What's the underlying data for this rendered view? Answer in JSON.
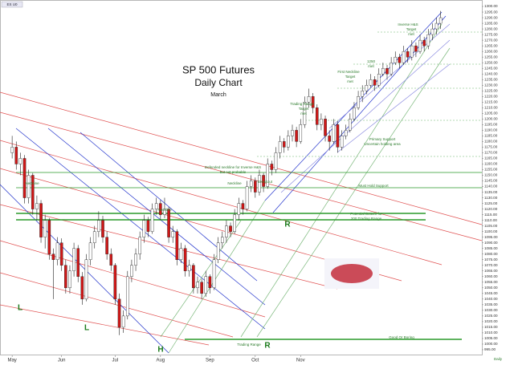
{
  "chart_data": {
    "type": "candlestick",
    "title": "SP 500 Futures",
    "subtitle": "Daily Chart",
    "period": "March",
    "symbol": "ES U0",
    "up_color": "#ffffff",
    "down_color": "#d01818",
    "outline_color": "#222222",
    "xlim": [
      -1,
      114
    ],
    "xticks": [
      {
        "value": 0,
        "label": "May"
      },
      {
        "value": 12,
        "label": "Jun"
      },
      {
        "value": 25,
        "label": "Jul"
      },
      {
        "value": 36,
        "label": "Aug"
      },
      {
        "value": 48,
        "label": "Sep"
      },
      {
        "value": 59,
        "label": "Oct"
      },
      {
        "value": 70,
        "label": "Nov"
      }
    ],
    "ylim": [
      990,
      1305
    ],
    "yticks": [
      {
        "value": 995,
        "label": "995.00"
      },
      {
        "value": 1000,
        "label": "1000.00"
      },
      {
        "value": 1005,
        "label": "1005.00"
      },
      {
        "value": 1010,
        "label": "1010.00"
      },
      {
        "value": 1015,
        "label": "1015.00"
      },
      {
        "value": 1020,
        "label": "1020.00"
      },
      {
        "value": 1025,
        "label": "1025.00"
      },
      {
        "value": 1030,
        "label": "1030.00"
      },
      {
        "value": 1035,
        "label": "1035.00"
      },
      {
        "value": 1040,
        "label": "1040.00"
      },
      {
        "value": 1045,
        "label": "1045.00"
      },
      {
        "value": 1050,
        "label": "1050.00"
      },
      {
        "value": 1055,
        "label": "1055.00"
      },
      {
        "value": 1060,
        "label": "1060.00"
      },
      {
        "value": 1065,
        "label": "1065.00"
      },
      {
        "value": 1070,
        "label": "1070.00"
      },
      {
        "value": 1075,
        "label": "1075.00"
      },
      {
        "value": 1080,
        "label": "1080.00"
      },
      {
        "value": 1085,
        "label": "1085.00"
      },
      {
        "value": 1090,
        "label": "1090.00"
      },
      {
        "value": 1095,
        "label": "1095.00"
      },
      {
        "value": 1100,
        "label": "1100.00"
      },
      {
        "value": 1105,
        "label": "1105.00"
      },
      {
        "value": 1110,
        "label": "1110.00"
      },
      {
        "value": 1115,
        "label": "1115.00"
      },
      {
        "value": 1120,
        "label": "1120.00"
      },
      {
        "value": 1125,
        "label": "1125.00"
      },
      {
        "value": 1130,
        "label": "1130.00"
      },
      {
        "value": 1135,
        "label": "1135.00"
      },
      {
        "value": 1140,
        "label": "1140.00"
      },
      {
        "value": 1145,
        "label": "1145.00"
      },
      {
        "value": 1150,
        "label": "1150.00"
      },
      {
        "value": 1155,
        "label": "1155.00"
      },
      {
        "value": 1160,
        "label": "1160.00"
      },
      {
        "value": 1165,
        "label": "1165.00"
      },
      {
        "value": 1170,
        "label": "1170.00"
      },
      {
        "value": 1175,
        "label": "1175.00"
      },
      {
        "value": 1180,
        "label": "1180.00"
      },
      {
        "value": 1185,
        "label": "1185.00"
      },
      {
        "value": 1190,
        "label": "1190.00"
      },
      {
        "value": 1195,
        "label": "1195.00"
      },
      {
        "value": 1200,
        "label": "1200.00"
      },
      {
        "value": 1205,
        "label": "1205.00"
      },
      {
        "value": 1210,
        "label": "1210.00"
      },
      {
        "value": 1215,
        "label": "1215.00"
      },
      {
        "value": 1220,
        "label": "1220.00"
      },
      {
        "value": 1225,
        "label": "1225.00"
      },
      {
        "value": 1230,
        "label": "1230.00"
      },
      {
        "value": 1235,
        "label": "1235.00"
      },
      {
        "value": 1240,
        "label": "1240.00"
      },
      {
        "value": 1245,
        "label": "1245.00"
      },
      {
        "value": 1250,
        "label": "1250.00"
      },
      {
        "value": 1255,
        "label": "1255.00"
      },
      {
        "value": 1260,
        "label": "1260.00"
      },
      {
        "value": 1265,
        "label": "1265.00"
      },
      {
        "value": 1270,
        "label": "1270.00"
      },
      {
        "value": 1275,
        "label": "1275.00"
      },
      {
        "value": 1280,
        "label": "1280.00"
      },
      {
        "value": 1285,
        "label": "1285.00"
      },
      {
        "value": 1290,
        "label": "1290.00"
      },
      {
        "value": 1295,
        "label": "1295.00"
      },
      {
        "value": 1300,
        "label": "1300.00"
      }
    ],
    "ohlc": [
      [
        1170,
        1185,
        1165,
        1175
      ],
      [
        1175,
        1180,
        1155,
        1160
      ],
      [
        1160,
        1170,
        1150,
        1165
      ],
      [
        1165,
        1168,
        1125,
        1130
      ],
      [
        1130,
        1155,
        1125,
        1150
      ],
      [
        1150,
        1152,
        1115,
        1120
      ],
      [
        1120,
        1132,
        1110,
        1125
      ],
      [
        1125,
        1128,
        1090,
        1095
      ],
      [
        1095,
        1115,
        1085,
        1110
      ],
      [
        1110,
        1112,
        1075,
        1080
      ],
      [
        1080,
        1085,
        1040,
        1075
      ],
      [
        1075,
        1095,
        1070,
        1090
      ],
      [
        1090,
        1094,
        1065,
        1070
      ],
      [
        1070,
        1075,
        1045,
        1050
      ],
      [
        1050,
        1070,
        1045,
        1065
      ],
      [
        1065,
        1090,
        1060,
        1085
      ],
      [
        1085,
        1088,
        1055,
        1060
      ],
      [
        1060,
        1064,
        1035,
        1040
      ],
      [
        1040,
        1080,
        1038,
        1075
      ],
      [
        1075,
        1095,
        1070,
        1090
      ],
      [
        1090,
        1105,
        1085,
        1100
      ],
      [
        1100,
        1118,
        1095,
        1110
      ],
      [
        1110,
        1114,
        1090,
        1095
      ],
      [
        1095,
        1100,
        1075,
        1080
      ],
      [
        1080,
        1085,
        1065,
        1070
      ],
      [
        1070,
        1072,
        1035,
        1040
      ],
      [
        1040,
        1045,
        1008,
        1015
      ],
      [
        1015,
        1030,
        1010,
        1025
      ],
      [
        1025,
        1065,
        1022,
        1060
      ],
      [
        1060,
        1075,
        1055,
        1070
      ],
      [
        1070,
        1085,
        1065,
        1080
      ],
      [
        1080,
        1100,
        1075,
        1095
      ],
      [
        1095,
        1115,
        1090,
        1110
      ],
      [
        1110,
        1113,
        1095,
        1100
      ],
      [
        1100,
        1125,
        1098,
        1120
      ],
      [
        1120,
        1130,
        1115,
        1125
      ],
      [
        1125,
        1128,
        1110,
        1115
      ],
      [
        1115,
        1130,
        1112,
        1120
      ],
      [
        1120,
        1122,
        1090,
        1095
      ],
      [
        1095,
        1105,
        1090,
        1100
      ],
      [
        1100,
        1102,
        1070,
        1075
      ],
      [
        1075,
        1090,
        1072,
        1085
      ],
      [
        1085,
        1088,
        1060,
        1065
      ],
      [
        1065,
        1075,
        1060,
        1070
      ],
      [
        1070,
        1072,
        1045,
        1050
      ],
      [
        1050,
        1060,
        1045,
        1055
      ],
      [
        1055,
        1058,
        1040,
        1045
      ],
      [
        1045,
        1065,
        1042,
        1060
      ],
      [
        1060,
        1062,
        1045,
        1050
      ],
      [
        1050,
        1080,
        1048,
        1075
      ],
      [
        1075,
        1095,
        1072,
        1090
      ],
      [
        1090,
        1100,
        1085,
        1095
      ],
      [
        1095,
        1110,
        1090,
        1105
      ],
      [
        1105,
        1108,
        1095,
        1100
      ],
      [
        1100,
        1120,
        1098,
        1115
      ],
      [
        1115,
        1130,
        1110,
        1125
      ],
      [
        1125,
        1128,
        1115,
        1120
      ],
      [
        1120,
        1145,
        1118,
        1140
      ],
      [
        1140,
        1150,
        1135,
        1145
      ],
      [
        1145,
        1148,
        1130,
        1135
      ],
      [
        1135,
        1155,
        1132,
        1150
      ],
      [
        1150,
        1152,
        1135,
        1140
      ],
      [
        1140,
        1165,
        1138,
        1160
      ],
      [
        1160,
        1163,
        1150,
        1155
      ],
      [
        1155,
        1175,
        1152,
        1170
      ],
      [
        1170,
        1185,
        1165,
        1180
      ],
      [
        1180,
        1183,
        1170,
        1175
      ],
      [
        1175,
        1190,
        1172,
        1185
      ],
      [
        1185,
        1195,
        1180,
        1190
      ],
      [
        1190,
        1193,
        1175,
        1180
      ],
      [
        1180,
        1200,
        1178,
        1195
      ],
      [
        1195,
        1220,
        1192,
        1215
      ],
      [
        1215,
        1227,
        1210,
        1220
      ],
      [
        1220,
        1223,
        1205,
        1210
      ],
      [
        1210,
        1213,
        1190,
        1195
      ],
      [
        1195,
        1205,
        1190,
        1200
      ],
      [
        1200,
        1203,
        1180,
        1185
      ],
      [
        1185,
        1190,
        1172,
        1180
      ],
      [
        1180,
        1200,
        1178,
        1195
      ],
      [
        1195,
        1198,
        1170,
        1175
      ],
      [
        1175,
        1190,
        1172,
        1185
      ],
      [
        1185,
        1195,
        1182,
        1190
      ],
      [
        1190,
        1205,
        1188,
        1200
      ],
      [
        1200,
        1215,
        1198,
        1210
      ],
      [
        1210,
        1225,
        1208,
        1220
      ],
      [
        1220,
        1230,
        1215,
        1225
      ],
      [
        1225,
        1235,
        1222,
        1230
      ],
      [
        1230,
        1240,
        1228,
        1235
      ],
      [
        1235,
        1238,
        1225,
        1230
      ],
      [
        1230,
        1245,
        1228,
        1240
      ],
      [
        1240,
        1250,
        1238,
        1245
      ],
      [
        1245,
        1248,
        1235,
        1240
      ],
      [
        1240,
        1255,
        1238,
        1250
      ],
      [
        1250,
        1260,
        1248,
        1255
      ],
      [
        1255,
        1258,
        1245,
        1250
      ],
      [
        1250,
        1265,
        1248,
        1260
      ],
      [
        1260,
        1263,
        1250,
        1255
      ],
      [
        1255,
        1270,
        1252,
        1265
      ],
      [
        1265,
        1268,
        1255,
        1260
      ],
      [
        1260,
        1275,
        1258,
        1270
      ],
      [
        1270,
        1273,
        1260,
        1265
      ],
      [
        1265,
        1280,
        1262,
        1275
      ],
      [
        1275,
        1285,
        1270,
        1280
      ],
      [
        1280,
        1290,
        1275,
        1285
      ],
      [
        1285,
        1296,
        1280,
        1290
      ]
    ],
    "annotations": [
      "Inverse H&S",
      "Target",
      "met",
      "1250",
      "met",
      "First Neckline",
      "Target",
      "met",
      "Trading Range",
      "Target",
      "met",
      "Primary Support",
      "Uncertain holding area",
      "Defended neckline for Inverse H&S",
      "but not probable",
      "Neckline",
      "Neckline",
      "Breakout",
      "Neckline",
      "Must Hold Support",
      "Potential Bottom for",
      "200 Trading Range",
      "Good Or Boring",
      "Trading Range",
      "L",
      "L",
      "H",
      "R",
      "R",
      "Daily"
    ]
  }
}
